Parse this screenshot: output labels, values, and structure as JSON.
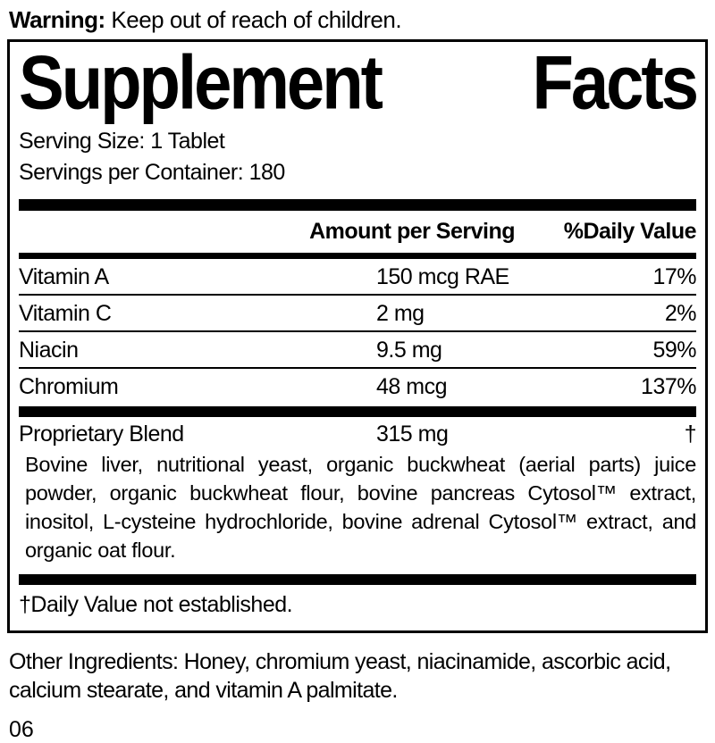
{
  "colors": {
    "text": "#000000",
    "background": "#ffffff"
  },
  "warning": {
    "label": "Warning:",
    "text": " Keep out of reach of children."
  },
  "panel": {
    "title_word1": "Supplement",
    "title_word2": "Facts",
    "serving_size": "Serving Size: 1 Tablet",
    "servings_per_container": "Servings per Container: 180",
    "header": {
      "amount": "Amount per Serving",
      "daily_value": "%Daily Value"
    },
    "nutrients": [
      {
        "name": "Vitamin A",
        "amount": "150 mcg RAE",
        "dv": "17%"
      },
      {
        "name": "Vitamin C",
        "amount": "2 mg",
        "dv": "2%"
      },
      {
        "name": "Niacin",
        "amount": "9.5 mg",
        "dv": "59%"
      },
      {
        "name": "Chromium",
        "amount": "48 mcg",
        "dv": "137%"
      }
    ],
    "blend": {
      "name": "Proprietary Blend",
      "amount": "315 mg",
      "dv": "†",
      "description": "Bovine liver, nutritional yeast, organic buckwheat (aerial parts) juice powder, organic buckwheat flour, bovine pancreas Cytosol™ extract, inositol, L-cysteine hydrochloride, bovine adrenal Cytosol™ extract, and organic oat flour."
    },
    "footnote": "†Daily Value not established."
  },
  "other_ingredients": "Other Ingredients: Honey, chromium yeast, niacinamide, ascorbic acid, calcium stearate, and vitamin A palmitate.",
  "code": "06"
}
